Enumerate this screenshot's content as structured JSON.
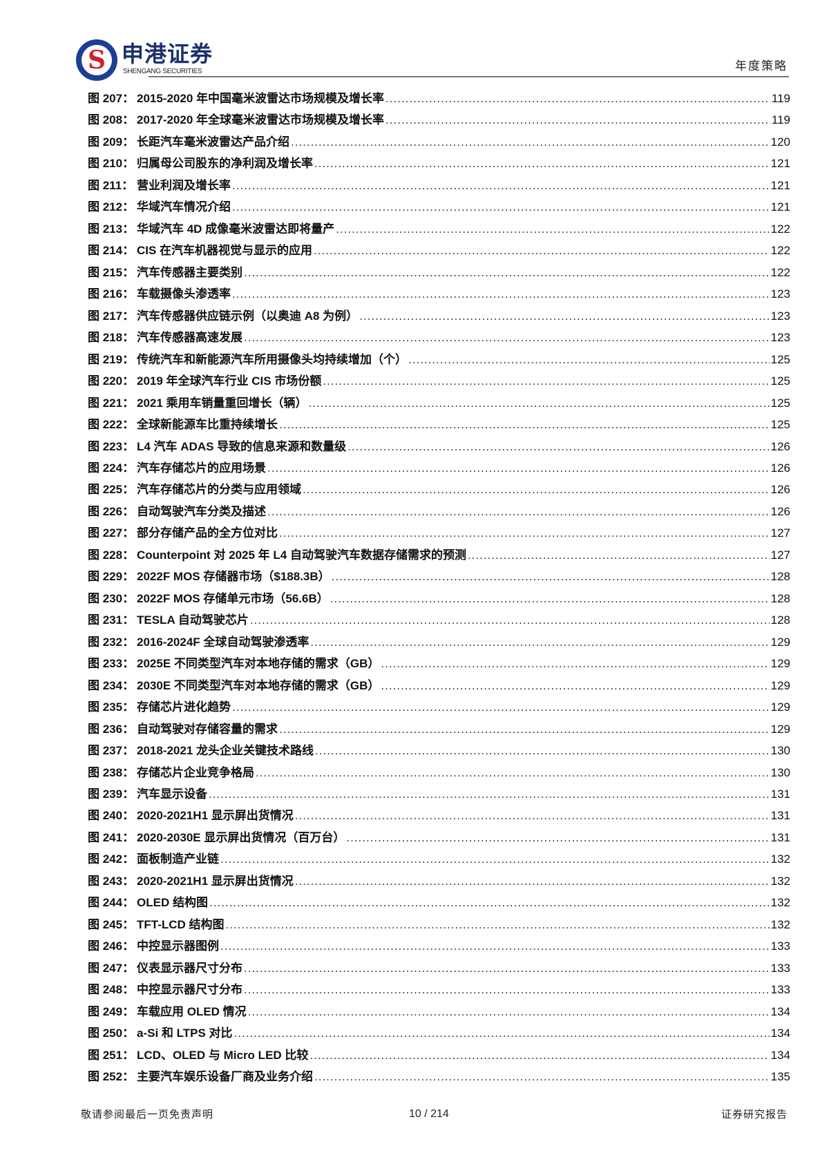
{
  "header": {
    "brand_cn": "申港证券",
    "brand_en": "SHENGANG SECURITIES",
    "section": "年度策略",
    "colors": {
      "logo_blue": "#1c3f94",
      "logo_red": "#d0202a"
    }
  },
  "toc": [
    {
      "label": "图 207：",
      "title": "2015-2020 年中国毫米波雷达市场规模及增长率",
      "page": "119"
    },
    {
      "label": "图 208：",
      "title": "2017-2020 年全球毫米波雷达市场规模及增长率",
      "page": "119"
    },
    {
      "label": "图 209：",
      "title": "长距汽车毫米波雷达产品介绍",
      "page": "120"
    },
    {
      "label": "图 210：",
      "title": "归属母公司股东的净利润及增长率",
      "page": "121"
    },
    {
      "label": "图 211：",
      "title": "营业利润及增长率",
      "page": "121"
    },
    {
      "label": "图 212：",
      "title": "华域汽车情况介绍",
      "page": "121"
    },
    {
      "label": "图 213：",
      "title": "华域汽车 4D 成像毫米波雷达即将量产",
      "page": "122"
    },
    {
      "label": "图 214：",
      "title": "CIS 在汽车机器视觉与显示的应用",
      "page": "122"
    },
    {
      "label": "图 215：",
      "title": "汽车传感器主要类别",
      "page": "122"
    },
    {
      "label": "图 216：",
      "title": "车载摄像头渗透率",
      "page": "123"
    },
    {
      "label": "图 217：",
      "title": "汽车传感器供应链示例（以奥迪 A8 为例）",
      "page": "123"
    },
    {
      "label": "图 218：",
      "title": "汽车传感器高速发展",
      "page": "123"
    },
    {
      "label": "图 219：",
      "title": "传统汽车和新能源汽车所用摄像头均持续增加（个）",
      "page": "125"
    },
    {
      "label": "图 220：",
      "title": "2019 年全球汽车行业 CIS 市场份额",
      "page": "125"
    },
    {
      "label": "图 221：",
      "title": "2021 乘用车销量重回增长（辆）",
      "page": "125"
    },
    {
      "label": "图 222：",
      "title": "全球新能源车比重持续增长",
      "page": "125"
    },
    {
      "label": "图 223：",
      "title": "L4 汽车 ADAS 导致的信息来源和数量级",
      "page": "126"
    },
    {
      "label": "图 224：",
      "title": "汽车存储芯片的应用场景",
      "page": "126"
    },
    {
      "label": "图 225：",
      "title": "汽车存储芯片的分类与应用领域",
      "page": "126"
    },
    {
      "label": "图 226：",
      "title": "自动驾驶汽车分类及描述",
      "page": "126"
    },
    {
      "label": "图 227：",
      "title": "部分存储产品的全方位对比",
      "page": "127"
    },
    {
      "label": "图 228：",
      "title": "Counterpoint 对 2025 年 L4 自动驾驶汽车数据存储需求的预测",
      "page": "127"
    },
    {
      "label": "图 229：",
      "title": "2022F MOS 存储器市场（$188.3B）",
      "page": "128"
    },
    {
      "label": "图 230：",
      "title": "2022F MOS 存储单元市场（56.6B）",
      "page": "128"
    },
    {
      "label": "图 231：",
      "title": "TESLA  自动驾驶芯片",
      "page": "128"
    },
    {
      "label": "图 232：",
      "title": "2016-2024F  全球自动驾驶渗透率",
      "page": "129"
    },
    {
      "label": "图 233：",
      "title": "2025E  不同类型汽车对本地存储的需求（GB）",
      "page": "129"
    },
    {
      "label": "图 234：",
      "title": "2030E  不同类型汽车对本地存储的需求（GB）",
      "page": "129"
    },
    {
      "label": "图 235：",
      "title": "存储芯片进化趋势",
      "page": "129"
    },
    {
      "label": "图 236：",
      "title": "自动驾驶对存储容量的需求",
      "page": "129"
    },
    {
      "label": "图 237：",
      "title": "2018-2021 龙头企业关键技术路线",
      "page": "130"
    },
    {
      "label": "图 238：",
      "title": "存储芯片企业竞争格局",
      "page": "130"
    },
    {
      "label": "图 239：",
      "title": "汽车显示设备",
      "page": "131"
    },
    {
      "label": "图 240：",
      "title": "2020-2021H1 显示屏出货情况",
      "page": "131"
    },
    {
      "label": "图 241：",
      "title": "2020-2030E 显示屏出货情况（百万台）",
      "page": "131"
    },
    {
      "label": "图 242：",
      "title": "面板制造产业链",
      "page": "132"
    },
    {
      "label": "图 243：",
      "title": "2020-2021H1 显示屏出货情况",
      "page": "132"
    },
    {
      "label": "图 244：",
      "title": "OLED 结构图",
      "page": "132"
    },
    {
      "label": "图 245：",
      "title": "TFT-LCD 结构图",
      "page": "132"
    },
    {
      "label": "图 246：",
      "title": "中控显示器图例",
      "page": "133"
    },
    {
      "label": "图 247：",
      "title": "仪表显示器尺寸分布",
      "page": "133"
    },
    {
      "label": "图 248：",
      "title": "中控显示器尺寸分布",
      "page": "133"
    },
    {
      "label": "图 249：",
      "title": "车载应用 OLED 情况",
      "page": "134"
    },
    {
      "label": "图 250：",
      "title": "a-Si 和 LTPS 对比",
      "page": "134"
    },
    {
      "label": "图 251：",
      "title": "LCD、OLED 与 Micro LED 比较",
      "page": "134"
    },
    {
      "label": "图 252：",
      "title": "主要汽车娱乐设备厂商及业务介绍",
      "page": "135"
    }
  ],
  "footer": {
    "disclaimer": "敬请参阅最后一页免责声明",
    "page_indicator": "10 / 214",
    "doc_type": "证券研究报告"
  }
}
